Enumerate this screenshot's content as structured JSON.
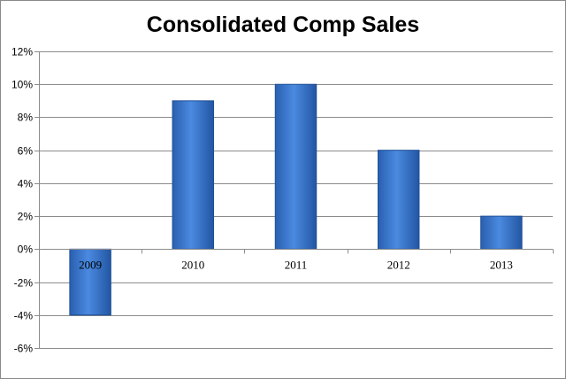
{
  "chart_data": {
    "type": "bar",
    "title": "Consolidated Comp Sales",
    "categories": [
      "2009",
      "2010",
      "2011",
      "2012",
      "2013"
    ],
    "values": [
      -4,
      9,
      10,
      6,
      2
    ],
    "value_format": "percent",
    "ylim": [
      -6,
      12
    ],
    "yticks": [
      12,
      10,
      8,
      6,
      4,
      2,
      0,
      -2,
      -4,
      -6
    ],
    "ytick_labels": [
      "12%",
      "10%",
      "8%",
      "6%",
      "4%",
      "2%",
      "0%",
      "-2%",
      "-4%",
      "-6%"
    ],
    "xlabel": "",
    "ylabel": "",
    "grid": true,
    "legend": false,
    "bar_color": "#3b76c8"
  }
}
